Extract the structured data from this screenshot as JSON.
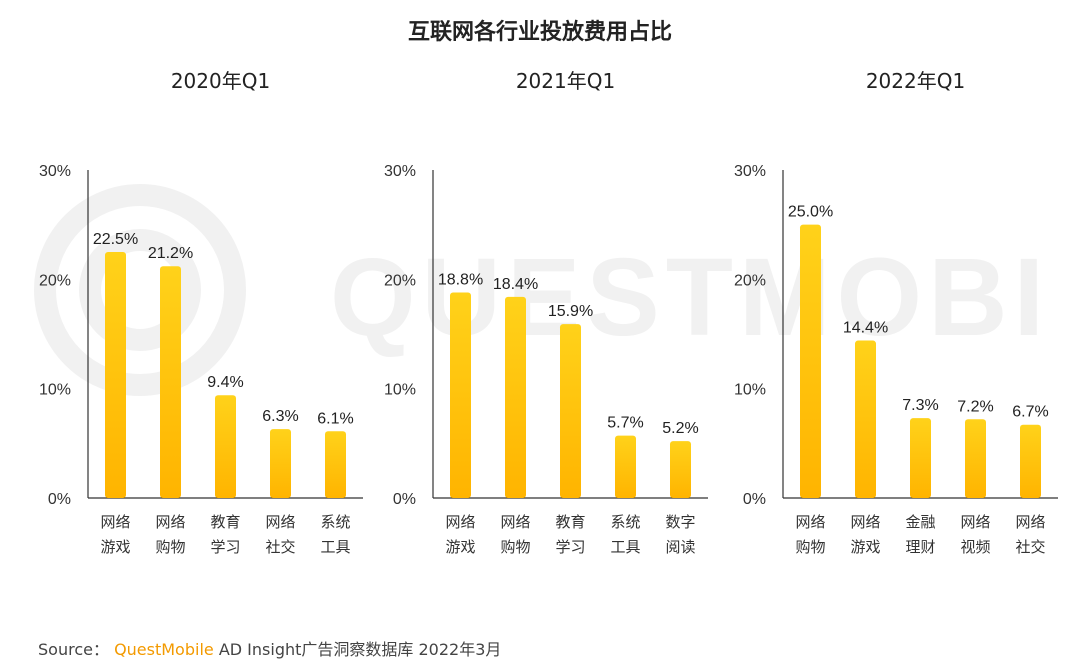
{
  "title": "互联网各行业投放费用占比",
  "watermark_text": "QUESTMOBILE",
  "source": {
    "prefix": "Source：",
    "brand": "QuestMobile",
    "suffix": " AD Insight广告洞察数据库 2022年3月"
  },
  "colors": {
    "bar_top": "#ffd21a",
    "bar_bottom": "#ffb400",
    "axis": "#333333",
    "brand": "#f39a00"
  },
  "chart_data": [
    {
      "type": "bar",
      "title": "2020年Q1",
      "categories": [
        [
          "网络",
          "游戏"
        ],
        [
          "网络",
          "购物"
        ],
        [
          "教育",
          "学习"
        ],
        [
          "网络",
          "社交"
        ],
        [
          "系统",
          "工具"
        ]
      ],
      "values": [
        22.5,
        21.2,
        9.4,
        6.3,
        6.1
      ],
      "value_labels": [
        "22.5%",
        "21.2%",
        "9.4%",
        "6.3%",
        "6.1%"
      ],
      "ylim": [
        0,
        30
      ],
      "yticks": [
        "0%",
        "10%",
        "20%",
        "30%"
      ],
      "grid": false,
      "xlabel": "",
      "ylabel": ""
    },
    {
      "type": "bar",
      "title": "2021年Q1",
      "categories": [
        [
          "网络",
          "游戏"
        ],
        [
          "网络",
          "购物"
        ],
        [
          "教育",
          "学习"
        ],
        [
          "系统",
          "工具"
        ],
        [
          "数字",
          "阅读"
        ]
      ],
      "values": [
        18.8,
        18.4,
        15.9,
        5.7,
        5.2
      ],
      "value_labels": [
        "18.8%",
        "18.4%",
        "15.9%",
        "5.7%",
        "5.2%"
      ],
      "ylim": [
        0,
        30
      ],
      "yticks": [
        "0%",
        "10%",
        "20%",
        "30%"
      ],
      "grid": false,
      "xlabel": "",
      "ylabel": ""
    },
    {
      "type": "bar",
      "title": "2022年Q1",
      "categories": [
        [
          "网络",
          "购物"
        ],
        [
          "网络",
          "游戏"
        ],
        [
          "金融",
          "理财"
        ],
        [
          "网络",
          "视频"
        ],
        [
          "网络",
          "社交"
        ]
      ],
      "values": [
        25.0,
        14.4,
        7.3,
        7.2,
        6.7
      ],
      "value_labels": [
        "25.0%",
        "14.4%",
        "7.3%",
        "7.2%",
        "6.7%"
      ],
      "ylim": [
        0,
        30
      ],
      "yticks": [
        "0%",
        "10%",
        "20%",
        "30%"
      ],
      "grid": false,
      "xlabel": "",
      "ylabel": ""
    }
  ]
}
